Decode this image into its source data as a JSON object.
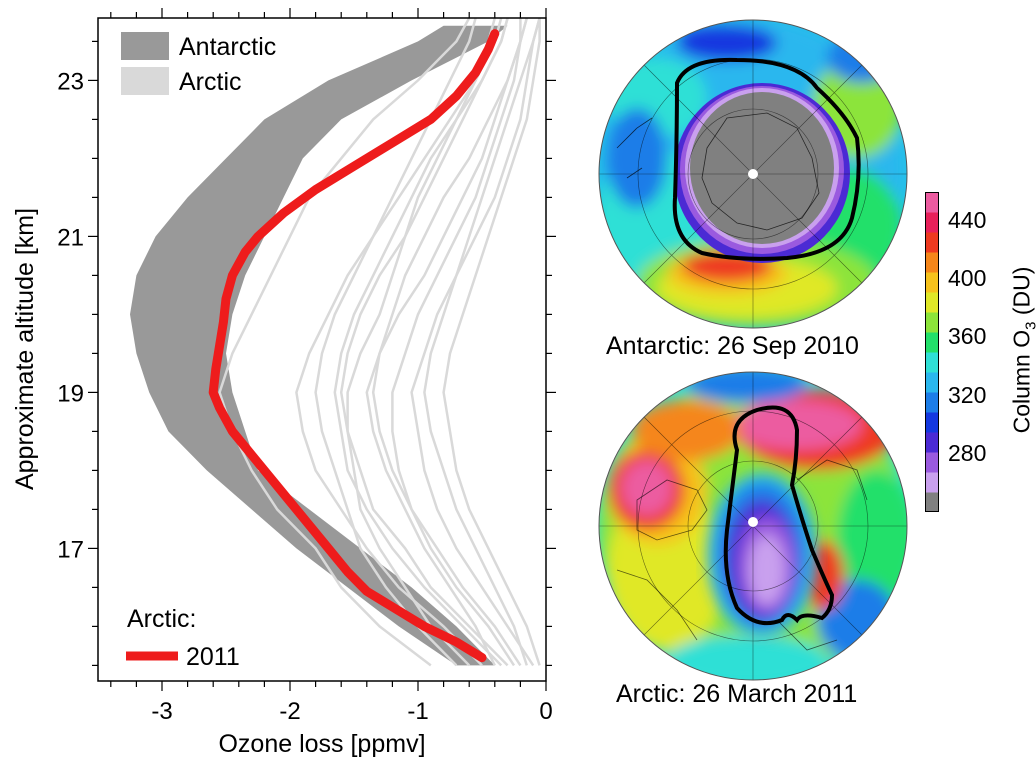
{
  "chart_data": {
    "type": "line",
    "xlabel": "Ozone loss [ppmv]",
    "ylabel": "Approximate altitude [km]",
    "xlim": [
      -3.5,
      0
    ],
    "ylim": [
      15.3,
      23.8
    ],
    "x_ticks": [
      -3,
      -2,
      -1,
      0
    ],
    "y_ticks": [
      17,
      19,
      21,
      23
    ],
    "legend": {
      "placement": "top-left",
      "entries": [
        "Antarctic",
        "Arctic"
      ],
      "lower_title": "Arctic:",
      "lower_entry": "2011"
    },
    "series": [
      {
        "name": "Antarctic",
        "kind": "band",
        "color": "#999999",
        "band": {
          "altitude": [
            15.5,
            16.0,
            16.5,
            17.0,
            17.5,
            18.0,
            18.5,
            19.0,
            19.5,
            20.0,
            20.5,
            21.0,
            21.5,
            22.0,
            22.5,
            23.0,
            23.5,
            23.7
          ],
          "min": [
            -0.7,
            -1.15,
            -1.55,
            -1.95,
            -2.3,
            -2.65,
            -2.95,
            -3.1,
            -3.2,
            -3.25,
            -3.2,
            -3.05,
            -2.8,
            -2.5,
            -2.2,
            -1.7,
            -1.0,
            -0.8
          ],
          "max": [
            -0.4,
            -0.7,
            -1.05,
            -1.45,
            -1.85,
            -2.25,
            -2.35,
            -2.45,
            -2.5,
            -2.45,
            -2.35,
            -2.2,
            -2.05,
            -1.9,
            -1.6,
            -1.05,
            -0.45,
            -0.3
          ]
        }
      },
      {
        "name": "Arctic",
        "kind": "lines",
        "color": "#d9d9d9",
        "lines": [
          {
            "altitude": [
              15.5,
              16.0,
              16.5,
              17.0,
              17.5,
              18.0,
              18.5,
              19.0,
              19.5,
              20.0,
              20.5,
              21.0,
              21.5,
              22.0,
              22.5,
              23.0,
              23.5,
              23.8
            ],
            "loss": [
              -0.9,
              -1.3,
              -1.6,
              -1.8,
              -2.1,
              -2.3,
              -2.45,
              -2.55,
              -2.45,
              -2.3,
              -2.15,
              -2.0,
              -1.85,
              -1.6,
              -1.35,
              -1.0,
              -0.7,
              -0.6
            ]
          },
          {
            "altitude": [
              15.5,
              16.0,
              16.5,
              17.0,
              17.5,
              18.0,
              18.5,
              19.0,
              19.5,
              20.0,
              20.5,
              21.0,
              21.5,
              22.0,
              22.5,
              23.0,
              23.5,
              23.8
            ],
            "loss": [
              -0.3,
              -0.6,
              -0.9,
              -1.1,
              -1.35,
              -1.45,
              -1.55,
              -1.6,
              -1.55,
              -1.45,
              -1.3,
              -1.1,
              -0.95,
              -0.8,
              -0.65,
              -0.5,
              -0.35,
              -0.3
            ]
          },
          {
            "altitude": [
              15.5,
              16.0,
              16.5,
              17.0,
              17.5,
              18.0,
              18.5,
              19.0,
              19.5,
              20.0,
              20.5,
              21.0,
              21.5,
              22.0,
              22.5,
              23.0,
              23.5,
              23.8
            ],
            "loss": [
              -0.2,
              -0.4,
              -0.65,
              -0.85,
              -1.05,
              -1.2,
              -1.3,
              -1.35,
              -1.3,
              -1.2,
              -1.1,
              -0.95,
              -0.8,
              -0.6,
              -0.45,
              -0.3,
              -0.2,
              -0.15
            ]
          },
          {
            "altitude": [
              15.5,
              16.0,
              16.5,
              17.0,
              17.5,
              18.0,
              18.5,
              19.0,
              19.5,
              20.0,
              20.5,
              21.0,
              21.5,
              22.0,
              22.5,
              23.0,
              23.5,
              23.8
            ],
            "loss": [
              -0.5,
              -0.8,
              -1.15,
              -1.4,
              -1.6,
              -1.8,
              -1.9,
              -1.95,
              -1.85,
              -1.7,
              -1.55,
              -1.35,
              -1.15,
              -0.95,
              -0.75,
              -0.55,
              -0.4,
              -0.35
            ]
          },
          {
            "altitude": [
              15.5,
              16.0,
              16.5,
              17.0,
              17.5,
              18.0,
              18.5,
              19.0,
              19.5,
              20.0,
              20.5,
              21.0,
              21.5,
              22.0,
              22.5,
              23.0,
              23.5,
              23.8
            ],
            "loss": [
              -0.1,
              -0.3,
              -0.5,
              -0.7,
              -0.85,
              -0.95,
              -1.0,
              -1.05,
              -0.95,
              -0.85,
              -0.7,
              -0.6,
              -0.5,
              -0.4,
              -0.3,
              -0.2,
              -0.1,
              -0.05
            ]
          },
          {
            "altitude": [
              15.5,
              16.0,
              16.5,
              17.0,
              17.5,
              18.0,
              18.5,
              19.0,
              19.5,
              20.0,
              20.5,
              21.0,
              21.5,
              22.0,
              22.5,
              23.0,
              23.5,
              23.8
            ],
            "loss": [
              -0.7,
              -1.0,
              -1.25,
              -1.45,
              -1.55,
              -1.65,
              -1.75,
              -1.8,
              -1.75,
              -1.65,
              -1.5,
              -1.35,
              -1.2,
              -1.05,
              -0.9,
              -0.75,
              -0.6,
              -0.55
            ]
          },
          {
            "altitude": [
              15.5,
              16.0,
              16.5,
              17.0,
              17.5,
              18.0,
              18.5,
              19.0,
              19.5,
              20.0,
              20.5,
              21.0,
              21.5,
              22.0,
              22.5,
              23.0,
              23.5,
              23.8
            ],
            "loss": [
              -0.4,
              -0.55,
              -0.75,
              -0.95,
              -1.1,
              -1.25,
              -1.35,
              -1.4,
              -1.3,
              -1.15,
              -0.95,
              -0.8,
              -0.65,
              -0.5,
              -0.4,
              -0.3,
              -0.2,
              -0.2
            ]
          },
          {
            "altitude": [
              15.5,
              16.0,
              16.5,
              17.0,
              17.5,
              18.0,
              18.5,
              19.0,
              19.5,
              20.0,
              20.5,
              21.0,
              21.5,
              22.0,
              22.5,
              23.0,
              23.5,
              23.8
            ],
            "loss": [
              -0.15,
              -0.25,
              -0.4,
              -0.55,
              -0.7,
              -0.8,
              -0.9,
              -0.95,
              -0.9,
              -0.8,
              -0.7,
              -0.55,
              -0.4,
              -0.3,
              -0.2,
              -0.15,
              -0.1,
              -0.05
            ]
          },
          {
            "altitude": [
              15.5,
              16.0,
              16.5,
              17.0,
              17.5,
              18.0,
              18.5,
              19.0,
              19.5,
              20.0,
              20.5,
              21.0,
              21.5,
              22.0,
              22.5,
              23.0,
              23.5,
              23.8
            ],
            "loss": [
              -0.6,
              -0.9,
              -1.1,
              -1.3,
              -1.45,
              -1.5,
              -1.55,
              -1.55,
              -1.45,
              -1.3,
              -1.2,
              -1.1,
              -1.0,
              -0.85,
              -0.7,
              -0.55,
              -0.45,
              -0.4
            ]
          },
          {
            "altitude": [
              15.5,
              16.0,
              16.5,
              17.0,
              17.5,
              18.0,
              18.5,
              19.0,
              19.5,
              20.0,
              20.5,
              21.0,
              21.5,
              22.0,
              22.5,
              23.0,
              23.5,
              23.8
            ],
            "loss": [
              -0.25,
              -0.45,
              -0.7,
              -0.9,
              -1.05,
              -1.15,
              -1.2,
              -1.2,
              -1.1,
              -1.0,
              -0.85,
              -0.7,
              -0.55,
              -0.45,
              -0.35,
              -0.25,
              -0.2,
              -0.15
            ]
          },
          {
            "altitude": [
              15.5,
              16.0,
              16.5,
              17.0,
              17.5,
              18.0,
              18.5,
              19.0,
              19.5,
              20.0,
              20.5,
              21.0,
              21.5,
              22.0,
              22.5,
              23.0,
              23.5,
              23.8
            ],
            "loss": [
              -0.35,
              -0.65,
              -0.95,
              -1.2,
              -1.4,
              -1.55,
              -1.6,
              -1.65,
              -1.6,
              -1.5,
              -1.35,
              -1.2,
              -1.05,
              -0.9,
              -0.7,
              -0.5,
              -0.35,
              -0.3
            ]
          },
          {
            "altitude": [
              15.5,
              16.0,
              16.5,
              17.0,
              17.5,
              18.0,
              18.5,
              19.0,
              19.5,
              20.0,
              20.5,
              21.0,
              21.5,
              22.0,
              22.5,
              23.0,
              23.5,
              23.8
            ],
            "loss": [
              -0.05,
              -0.15,
              -0.3,
              -0.45,
              -0.6,
              -0.7,
              -0.75,
              -0.8,
              -0.75,
              -0.65,
              -0.55,
              -0.45,
              -0.35,
              -0.25,
              -0.15,
              -0.1,
              -0.05,
              -0.05
            ]
          }
        ]
      },
      {
        "name": "2011",
        "kind": "line",
        "color": "#ee1c1c",
        "altitude": [
          15.6,
          15.8,
          16.0,
          16.2,
          16.45,
          16.7,
          17.0,
          17.3,
          17.6,
          17.9,
          18.2,
          18.5,
          18.8,
          19.0,
          19.3,
          19.6,
          19.9,
          20.2,
          20.5,
          20.8,
          21.0,
          21.3,
          21.6,
          21.9,
          22.2,
          22.5,
          22.8,
          23.1,
          23.4,
          23.6
        ],
        "loss": [
          -0.5,
          -0.7,
          -0.95,
          -1.15,
          -1.4,
          -1.55,
          -1.7,
          -1.85,
          -2.0,
          -2.15,
          -2.3,
          -2.45,
          -2.55,
          -2.6,
          -2.58,
          -2.55,
          -2.52,
          -2.5,
          -2.45,
          -2.35,
          -2.25,
          -2.05,
          -1.8,
          -1.5,
          -1.2,
          -0.9,
          -0.7,
          -0.55,
          -0.45,
          -0.4
        ]
      }
    ]
  },
  "maps": {
    "south": {
      "caption": "Antarctic: 26 Sep 2010"
    },
    "north": {
      "caption": "Arctic: 26 March 2011"
    }
  },
  "colorbar": {
    "title": "Column O3 (DU)",
    "title_main": "Column O",
    "title_sub": "3",
    "title_tail": " (DU)",
    "ticks": [
      "440",
      "400",
      "360",
      "320",
      "280"
    ],
    "tick_values": [
      440,
      400,
      360,
      320,
      280
    ],
    "range": [
      240,
      460
    ],
    "colors": [
      "#808080",
      "#c9a0ee",
      "#9a5adf",
      "#4b2ad4",
      "#1438e0",
      "#1c7de8",
      "#2ab7ee",
      "#2fe0d6",
      "#22e06a",
      "#8ce43a",
      "#e0e828",
      "#f6c21c",
      "#f5861a",
      "#ee3a20",
      "#e8205a",
      "#ec5ba0"
    ]
  }
}
